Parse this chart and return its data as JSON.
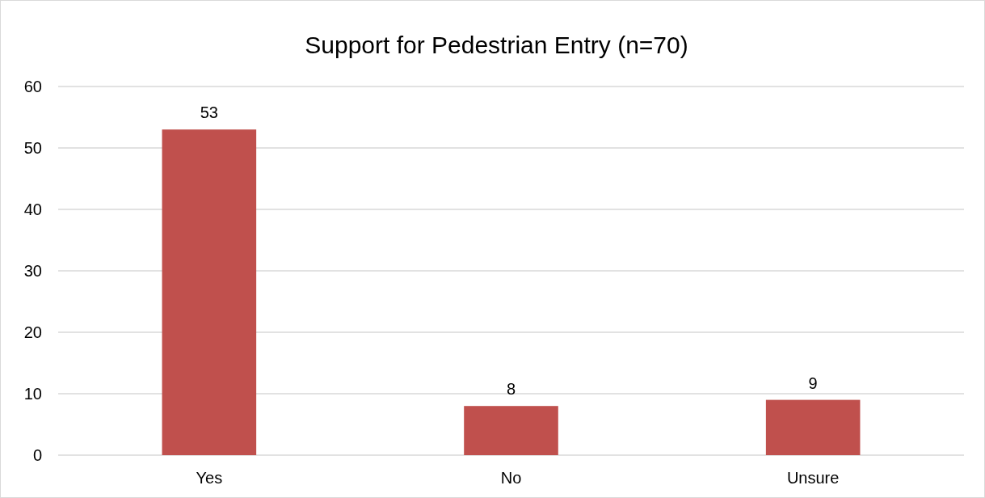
{
  "chart_data": {
    "type": "bar",
    "title": "Support for Pedestrian Entry (n=70)",
    "categories": [
      "Yes",
      "No",
      "Unsure"
    ],
    "values": [
      53,
      8,
      9
    ],
    "color": "#c0504d",
    "ylim": [
      0,
      60
    ],
    "yticks": [
      0,
      10,
      20,
      30,
      40,
      50,
      60
    ],
    "grid": "y",
    "data_labels": true
  }
}
